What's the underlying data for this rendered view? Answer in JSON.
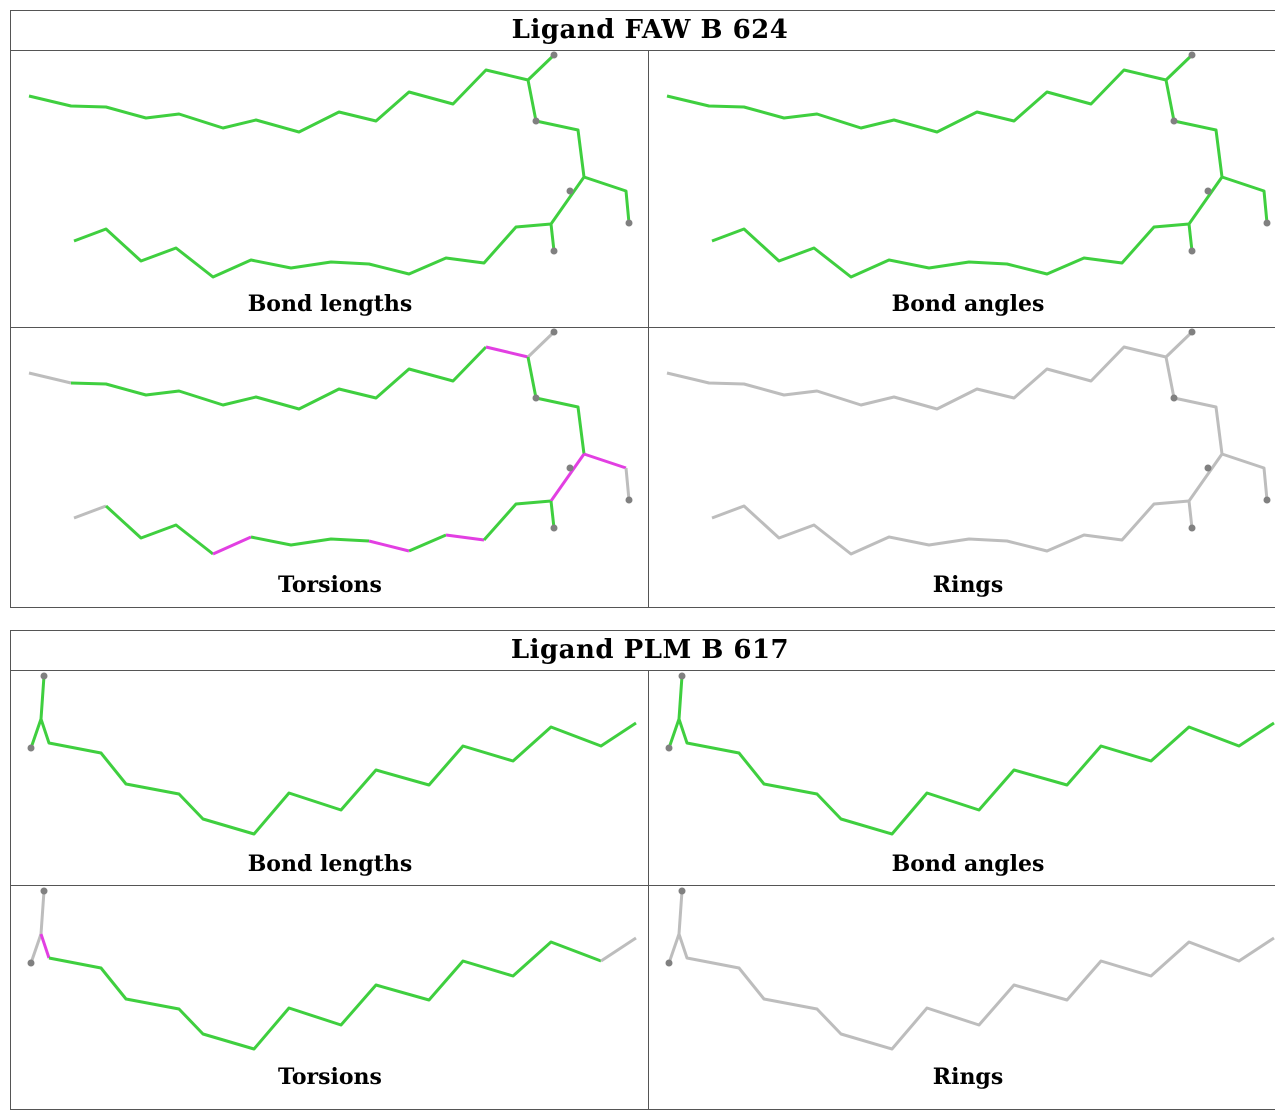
{
  "ligands": [
    {
      "title": "Ligand FAW B 624",
      "panels": [
        {
          "caption": "Bond lengths"
        },
        {
          "caption": "Bond angles"
        },
        {
          "caption": "Torsions"
        },
        {
          "caption": "Rings"
        }
      ]
    },
    {
      "title": "Ligand PLM B 617",
      "panels": [
        {
          "caption": "Bond lengths"
        },
        {
          "caption": "Bond angles"
        },
        {
          "caption": "Torsions"
        },
        {
          "caption": "Rings"
        }
      ]
    }
  ],
  "colors": {
    "ok_green": "#3fcf3f",
    "outlier_magenta": "#e23fe2",
    "neutral_grey": "#bdbdbd",
    "atom_grey": "#808080"
  }
}
